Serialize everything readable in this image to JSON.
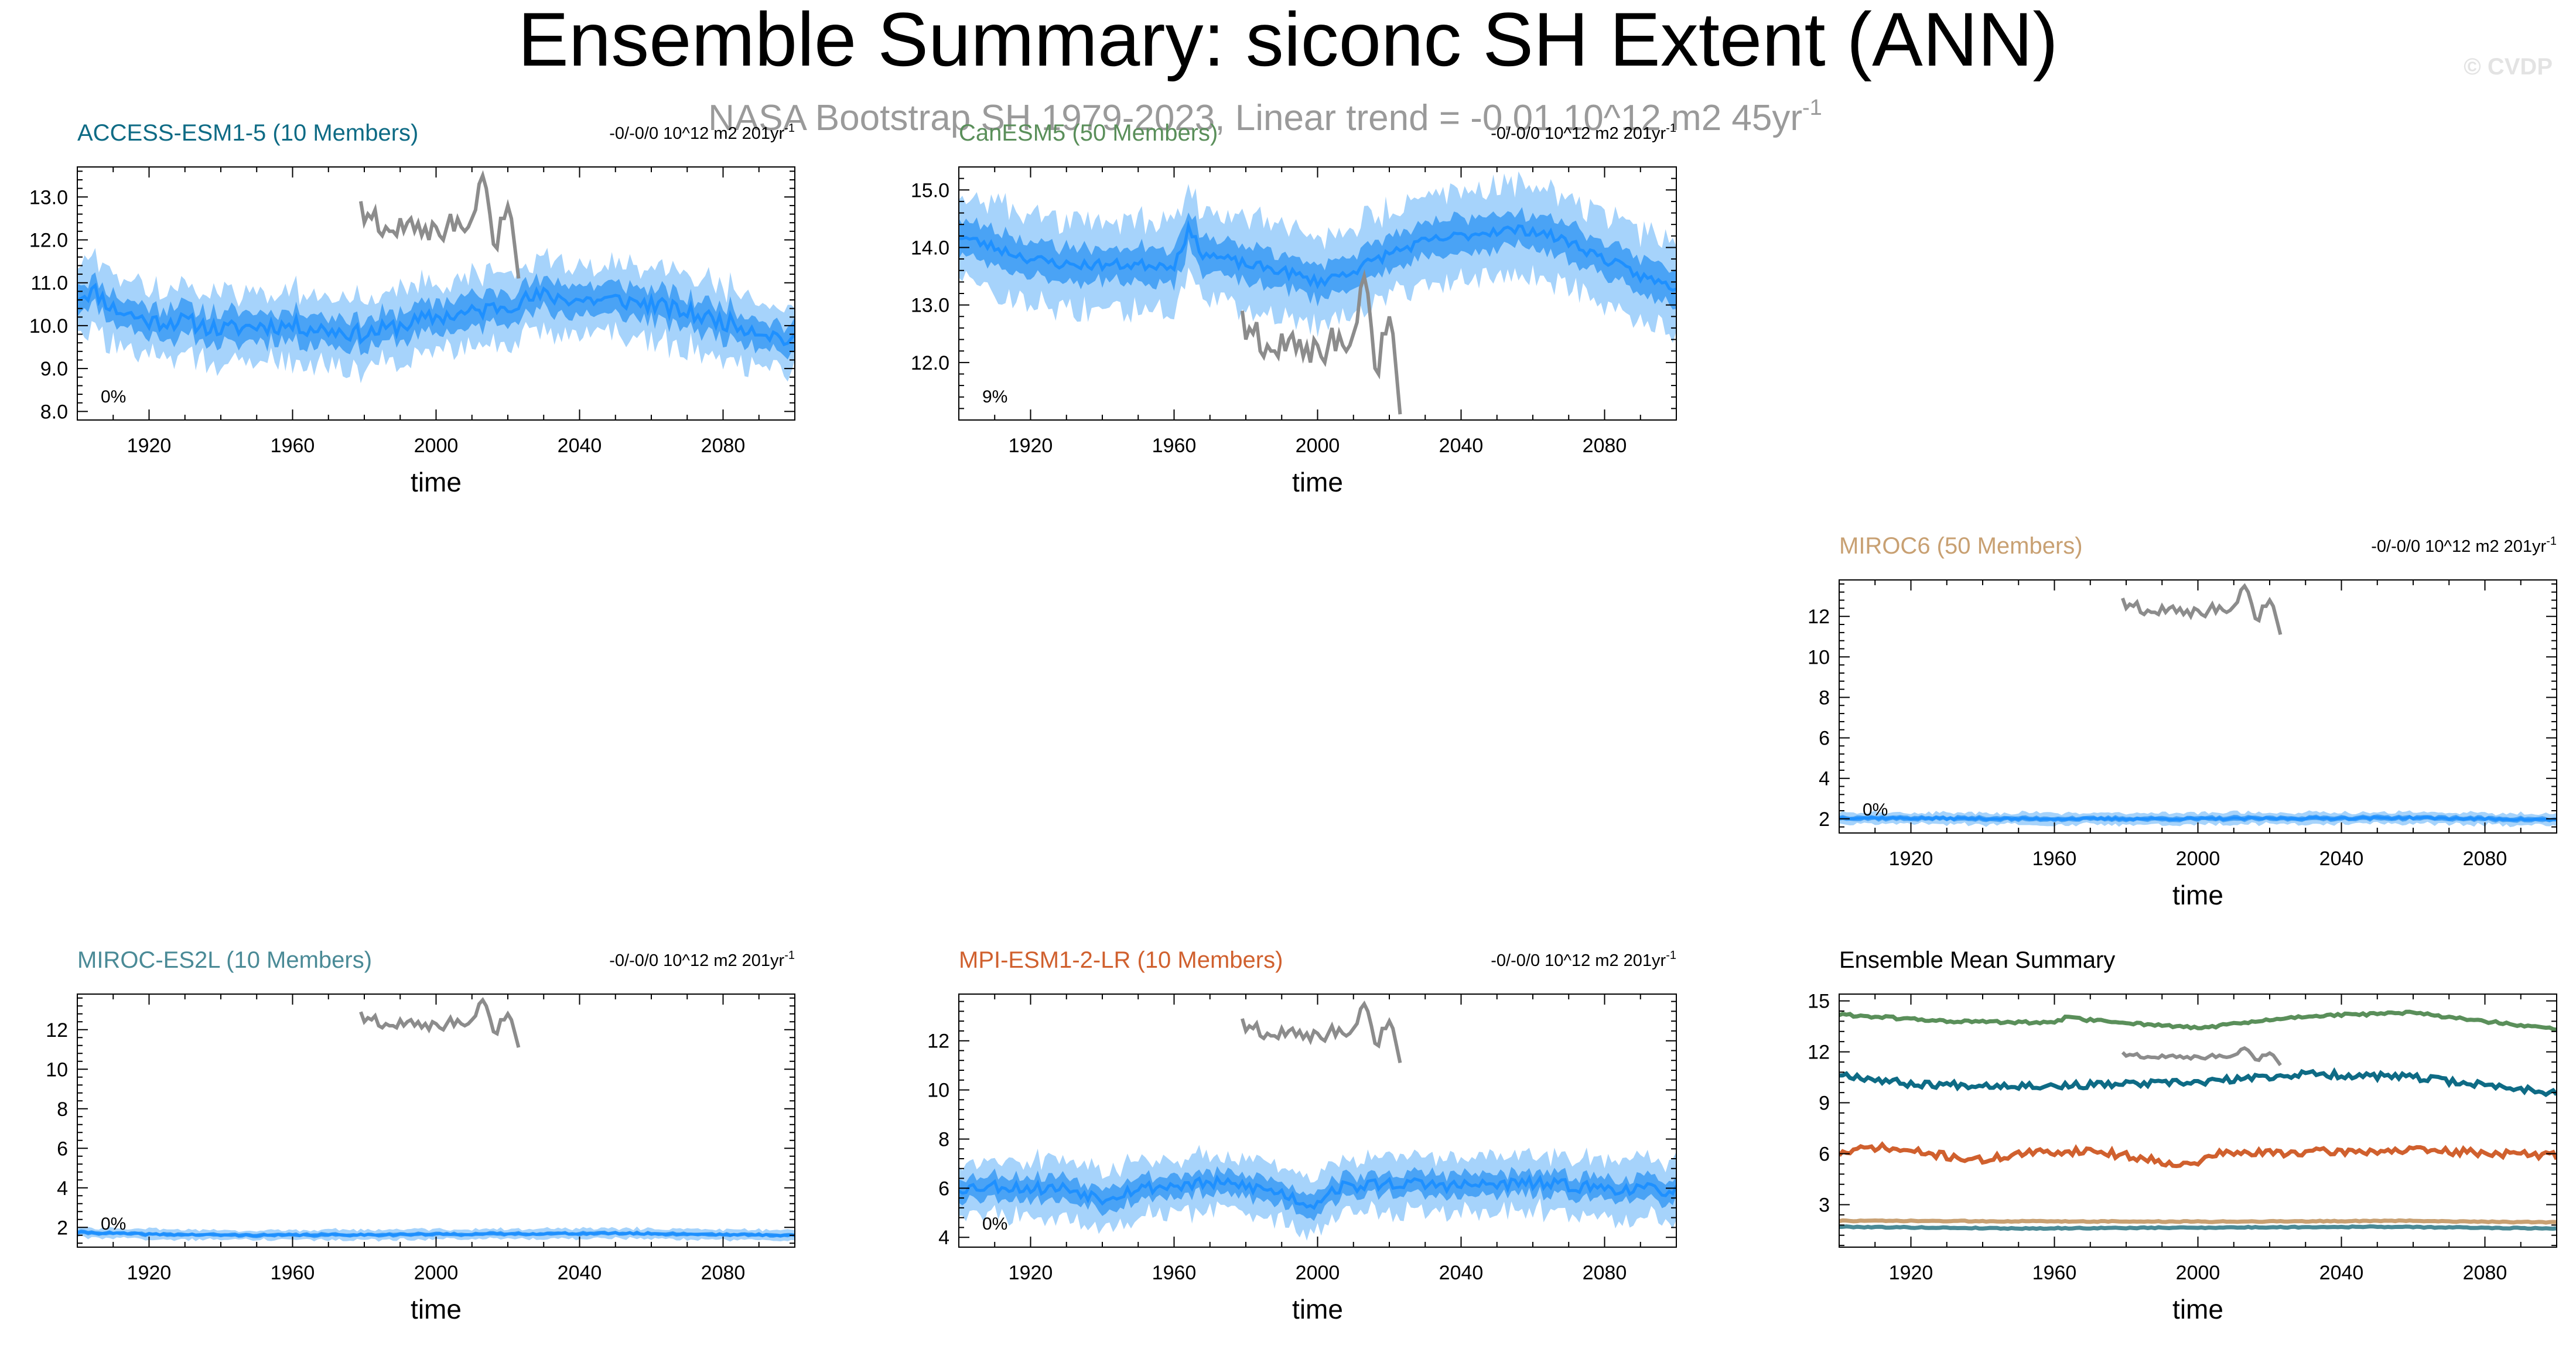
{
  "title": "Ensemble Summary: siconc SH Extent (ANN)",
  "watermark": "© CVDP",
  "obs_label": "NASA Bootstrap SH 1979-2023, Linear trend = -0.01 10^12 m2 45yr",
  "obs_label_exp": "-1",
  "colors": {
    "mean": "#1e90ff",
    "band_inner": "#4aa3f5",
    "band_outer": "#a6d3fb",
    "obs": "#8c8c8c",
    "axis": "#000000"
  },
  "obs_series": {
    "start_year": 1979,
    "values": [
      12.9,
      12.4,
      12.6,
      12.5,
      12.7,
      12.2,
      12.1,
      12.3,
      12.2,
      12.2,
      12.1,
      12.5,
      12.2,
      12.4,
      12.5,
      12.2,
      12.4,
      12.1,
      12.3,
      12.0,
      12.4,
      12.3,
      12.1,
      12.0,
      12.3,
      12.6,
      12.2,
      12.5,
      12.3,
      12.2,
      12.3,
      12.5,
      12.7,
      13.3,
      13.5,
      13.2,
      12.6,
      11.9,
      11.8,
      12.5,
      12.5,
      12.8,
      12.5,
      11.8,
      11.1
    ]
  },
  "chart_data": [
    {
      "type": "area",
      "id": "access",
      "title": "ACCESS-ESM1-5 (10 Members)",
      "title_color": "#0e6b85",
      "trend_label": "-0/-0/0 10^12 m2 201yr",
      "trend_exp": "-1",
      "percent_label": "0%",
      "xlabel": "time",
      "xlim": [
        1900,
        2100
      ],
      "xticks": [
        1920,
        1960,
        2000,
        2040,
        2080
      ],
      "ylim": [
        7.8,
        13.7
      ],
      "yticks": [
        8.0,
        9.0,
        10.0,
        11.0,
        12.0,
        13.0
      ],
      "ytick_labels": [
        "8.0",
        "9.0",
        "10.0",
        "11.0",
        "12.0",
        "13.0"
      ],
      "mean_knots": [
        [
          1900,
          10.7
        ],
        [
          1905,
          10.8
        ],
        [
          1910,
          10.4
        ],
        [
          1920,
          10.1
        ],
        [
          1930,
          10.1
        ],
        [
          1940,
          9.9
        ],
        [
          1950,
          10.0
        ],
        [
          1960,
          10.0
        ],
        [
          1970,
          9.9
        ],
        [
          1980,
          9.8
        ],
        [
          1990,
          10.0
        ],
        [
          2000,
          10.2
        ],
        [
          2010,
          10.3
        ],
        [
          2020,
          10.5
        ],
        [
          2030,
          10.7
        ],
        [
          2040,
          10.6
        ],
        [
          2050,
          10.6
        ],
        [
          2060,
          10.5
        ],
        [
          2070,
          10.3
        ],
        [
          2080,
          10.1
        ],
        [
          2090,
          9.9
        ],
        [
          2100,
          9.6
        ]
      ],
      "spread": [
        0.35,
        0.8
      ],
      "noise": 0.2,
      "seed": 11,
      "obs_scale": 1.0,
      "obs_offset": 0.0
    },
    {
      "type": "area",
      "id": "canesm",
      "title": "CanESM5 (50 Members)",
      "title_color": "#5a8f5a",
      "trend_label": "-0/-0/0 10^12 m2 201yr",
      "trend_exp": "-1",
      "percent_label": "9%",
      "xlabel": "time",
      "xlim": [
        1900,
        2100
      ],
      "xticks": [
        1920,
        1960,
        2000,
        2040,
        2080
      ],
      "ylim": [
        11.0,
        15.4
      ],
      "yticks": [
        12.0,
        13.0,
        14.0,
        15.0
      ],
      "ytick_labels": [
        "12.0",
        "13.0",
        "14.0",
        "15.0"
      ],
      "mean_knots": [
        [
          1900,
          14.2
        ],
        [
          1910,
          14.0
        ],
        [
          1920,
          13.8
        ],
        [
          1930,
          13.7
        ],
        [
          1940,
          13.7
        ],
        [
          1950,
          13.7
        ],
        [
          1960,
          13.7
        ],
        [
          1964,
          14.3
        ],
        [
          1968,
          13.9
        ],
        [
          1980,
          13.7
        ],
        [
          1990,
          13.6
        ],
        [
          2000,
          13.4
        ],
        [
          2010,
          13.6
        ],
        [
          2020,
          13.9
        ],
        [
          2030,
          14.1
        ],
        [
          2040,
          14.2
        ],
        [
          2050,
          14.3
        ],
        [
          2060,
          14.3
        ],
        [
          2070,
          14.1
        ],
        [
          2080,
          13.8
        ],
        [
          2090,
          13.5
        ],
        [
          2100,
          13.3
        ]
      ],
      "spread": [
        0.3,
        0.75
      ],
      "noise": 0.09,
      "seed": 23,
      "obs_scale": 1.0,
      "obs_offset": 0.0
    },
    {
      "type": "area",
      "id": "miroc6",
      "title": "MIROC6 (50 Members)",
      "title_color": "#c8a072",
      "trend_label": "-0/-0/0 10^12 m2 201yr",
      "trend_exp": "-1",
      "percent_label": "0%",
      "xlabel": "time",
      "xlim": [
        1900,
        2100
      ],
      "xticks": [
        1920,
        1960,
        2000,
        2040,
        2080
      ],
      "ylim": [
        1.3,
        13.8
      ],
      "yticks": [
        2,
        4,
        6,
        8,
        10,
        12
      ],
      "ytick_labels": [
        "2",
        "4",
        "6",
        "8",
        "10",
        "12"
      ],
      "mean_knots": [
        [
          1900,
          2.05
        ],
        [
          1950,
          2.0
        ],
        [
          2000,
          2.0
        ],
        [
          2060,
          2.05
        ],
        [
          2100,
          1.95
        ]
      ],
      "spread": [
        0.12,
        0.28
      ],
      "noise": 0.05,
      "seed": 37,
      "obs_scale": 1.0,
      "obs_offset": 0.0
    },
    {
      "type": "area",
      "id": "miroces2l",
      "title": "MIROC-ES2L (10 Members)",
      "title_color": "#4a8a96",
      "trend_label": "-0/-0/0 10^12 m2 201yr",
      "trend_exp": "-1",
      "percent_label": "0%",
      "xlabel": "time",
      "xlim": [
        1900,
        2100
      ],
      "xticks": [
        1920,
        1960,
        2000,
        2040,
        2080
      ],
      "ylim": [
        1.0,
        13.8
      ],
      "yticks": [
        2,
        4,
        6,
        8,
        10,
        12
      ],
      "ytick_labels": [
        "2",
        "4",
        "6",
        "8",
        "10",
        "12"
      ],
      "mean_knots": [
        [
          1900,
          1.75
        ],
        [
          1920,
          1.65
        ],
        [
          1950,
          1.6
        ],
        [
          2000,
          1.65
        ],
        [
          2050,
          1.7
        ],
        [
          2100,
          1.6
        ]
      ],
      "spread": [
        0.1,
        0.25
      ],
      "noise": 0.04,
      "seed": 41,
      "obs_scale": 1.0,
      "obs_offset": 0.0
    },
    {
      "type": "area",
      "id": "mpi",
      "title": "MPI-ESM1-2-LR (10 Members)",
      "title_color": "#d0602e",
      "trend_label": "-0/-0/0 10^12 m2 201yr",
      "trend_exp": "-1",
      "percent_label": "0%",
      "xlabel": "time",
      "xlim": [
        1900,
        2100
      ],
      "xticks": [
        1920,
        1960,
        2000,
        2040,
        2080
      ],
      "ylim": [
        3.6,
        13.9
      ],
      "yticks": [
        4,
        6,
        8,
        10,
        12
      ],
      "ytick_labels": [
        "4",
        "6",
        "8",
        "10",
        "12"
      ],
      "mean_knots": [
        [
          1900,
          6.0
        ],
        [
          1910,
          6.1
        ],
        [
          1920,
          6.0
        ],
        [
          1930,
          6.0
        ],
        [
          1940,
          5.6
        ],
        [
          1950,
          6.0
        ],
        [
          1960,
          6.1
        ],
        [
          1970,
          6.2
        ],
        [
          1980,
          6.1
        ],
        [
          1990,
          5.8
        ],
        [
          1998,
          5.3
        ],
        [
          2005,
          6.0
        ],
        [
          2020,
          6.2
        ],
        [
          2040,
          6.1
        ],
        [
          2060,
          6.2
        ],
        [
          2080,
          6.0
        ],
        [
          2100,
          5.9
        ]
      ],
      "spread": [
        0.45,
        1.1
      ],
      "noise": 0.25,
      "seed": 53,
      "obs_scale": 1.0,
      "obs_offset": 0.0
    },
    {
      "type": "line",
      "id": "summary",
      "title": "Ensemble Mean Summary",
      "title_color": "#000000",
      "xlabel": "time",
      "xlim": [
        1900,
        2100
      ],
      "xticks": [
        1920,
        1960,
        2000,
        2040,
        2080
      ],
      "ylim": [
        0.5,
        15.4
      ],
      "yticks": [
        3,
        6,
        9,
        12,
        15
      ],
      "ytick_labels": [
        "3",
        "6",
        "9",
        "12",
        "15"
      ],
      "obs_scale": 0.42,
      "obs_offset": 6.55,
      "series": [
        {
          "name": "CanESM5",
          "color": "#5a8f5a",
          "seed": 61,
          "noise": 0.08,
          "knots": [
            [
              1900,
              14.2
            ],
            [
              1930,
              13.8
            ],
            [
              1960,
              13.7
            ],
            [
              1964,
              14.1
            ],
            [
              1968,
              13.9
            ],
            [
              2000,
              13.4
            ],
            [
              2030,
              14.1
            ],
            [
              2060,
              14.3
            ],
            [
              2100,
              13.3
            ]
          ]
        },
        {
          "name": "ACCESS-ESM1-5",
          "color": "#0e6b85",
          "seed": 67,
          "noise": 0.2,
          "knots": [
            [
              1900,
              10.7
            ],
            [
              1920,
              10.1
            ],
            [
              1960,
              10.0
            ],
            [
              2000,
              10.2
            ],
            [
              2030,
              10.7
            ],
            [
              2060,
              10.5
            ],
            [
              2100,
              9.6
            ]
          ]
        },
        {
          "name": "MPI-ESM1-2-LR",
          "color": "#d0602e",
          "seed": 71,
          "noise": 0.22,
          "knots": [
            [
              1900,
              6.0
            ],
            [
              1910,
              6.4
            ],
            [
              1940,
              5.6
            ],
            [
              1950,
              6.0
            ],
            [
              1970,
              6.2
            ],
            [
              1998,
              5.3
            ],
            [
              2005,
              6.0
            ],
            [
              2060,
              6.2
            ],
            [
              2100,
              5.9
            ]
          ]
        },
        {
          "name": "MIROC6",
          "color": "#c8a072",
          "seed": 73,
          "noise": 0.03,
          "knots": [
            [
              1900,
              2.05
            ],
            [
              2000,
              2.0
            ],
            [
              2060,
              2.05
            ],
            [
              2100,
              1.95
            ]
          ]
        },
        {
          "name": "MIROC-ES2L",
          "color": "#4a8a96",
          "seed": 79,
          "noise": 0.03,
          "knots": [
            [
              1900,
              1.7
            ],
            [
              1950,
              1.6
            ],
            [
              2050,
              1.7
            ],
            [
              2100,
              1.6
            ]
          ]
        }
      ]
    }
  ]
}
